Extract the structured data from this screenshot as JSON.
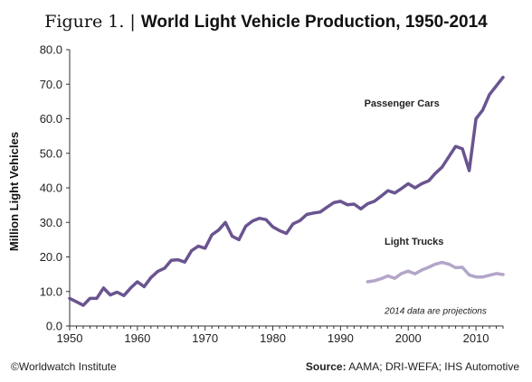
{
  "header": {
    "figure_label": "Figure 1.",
    "separator": "|",
    "title": "World Light Vehicle Production, 1950-2014"
  },
  "footer": {
    "credit": "©Worldwatch Institute",
    "source_label": "Source:",
    "source_text": "AAMA; DRI-WEFA; IHS Automotive"
  },
  "chart_data": {
    "type": "line",
    "title": "World Light Vehicle Production, 1950-2014",
    "xlabel": "",
    "ylabel": "Million Light Vehicles",
    "xlim": [
      1950,
      2014
    ],
    "ylim": [
      0,
      80
    ],
    "x_ticks": [
      1950,
      1960,
      1970,
      1980,
      1990,
      2000,
      2010
    ],
    "y_ticks": [
      "0.0",
      "10.0",
      "20.0",
      "30.0",
      "40.0",
      "50.0",
      "60.0",
      "70.0",
      "80.0"
    ],
    "grid": false,
    "annotations": [
      {
        "text": "2014 data are projections"
      }
    ],
    "series": [
      {
        "name": "Passenger Cars",
        "color": "#6a5490",
        "x": [
          1950,
          1951,
          1952,
          1953,
          1954,
          1955,
          1956,
          1957,
          1958,
          1959,
          1960,
          1961,
          1962,
          1963,
          1964,
          1965,
          1966,
          1967,
          1968,
          1969,
          1970,
          1971,
          1972,
          1973,
          1974,
          1975,
          1976,
          1977,
          1978,
          1979,
          1980,
          1981,
          1982,
          1983,
          1984,
          1985,
          1986,
          1987,
          1988,
          1989,
          1990,
          1991,
          1992,
          1993,
          1994,
          1995,
          1996,
          1997,
          1998,
          1999,
          2000,
          2001,
          2002,
          2003,
          2004,
          2005,
          2006,
          2007,
          2008,
          2009,
          2010,
          2011,
          2012,
          2013,
          2014
        ],
        "values": [
          8.0,
          7.0,
          6.0,
          8.0,
          8.0,
          11.0,
          9.0,
          9.8,
          8.8,
          11.0,
          12.8,
          11.4,
          14.0,
          15.8,
          16.7,
          19.0,
          19.2,
          18.5,
          21.8,
          23.1,
          22.5,
          26.4,
          27.8,
          30.0,
          26.0,
          25.0,
          28.9,
          30.4,
          31.2,
          30.8,
          28.7,
          27.6,
          26.8,
          29.6,
          30.5,
          32.3,
          32.7,
          33.0,
          34.4,
          35.7,
          36.1,
          35.1,
          35.3,
          33.9,
          35.4,
          36.1,
          37.6,
          39.2,
          38.5,
          39.8,
          41.2,
          40.0,
          41.2,
          42.0,
          44.2,
          46.0,
          49.0,
          52.0,
          51.3,
          45.0,
          60.0,
          62.5,
          67.0,
          69.5,
          72.0
        ]
      },
      {
        "name": "Light Trucks",
        "color": "#b3a6c9",
        "x": [
          1994,
          1995,
          1996,
          1997,
          1998,
          1999,
          2000,
          2001,
          2002,
          2003,
          2004,
          2005,
          2006,
          2007,
          2008,
          2009,
          2010,
          2011,
          2012,
          2013,
          2014
        ],
        "values": [
          12.8,
          13.1,
          13.7,
          14.5,
          13.8,
          15.2,
          15.9,
          15.1,
          16.2,
          17.0,
          17.9,
          18.4,
          17.9,
          16.9,
          17.0,
          14.8,
          14.2,
          14.2,
          14.7,
          15.2,
          14.9
        ]
      }
    ]
  }
}
